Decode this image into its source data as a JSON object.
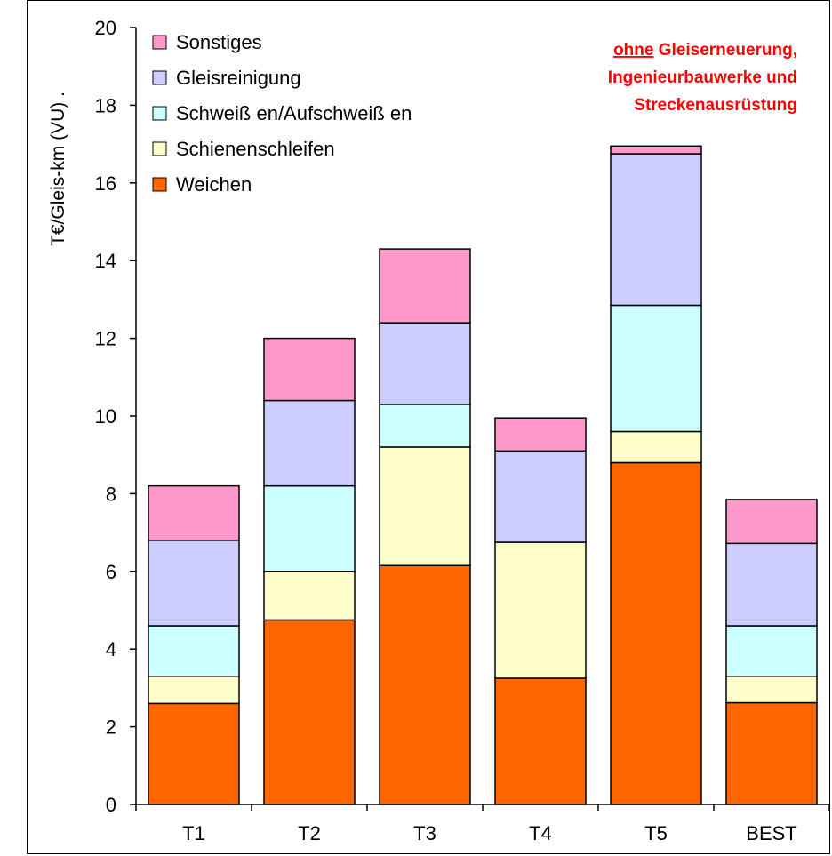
{
  "chart_data": {
    "type": "bar",
    "stacked": true,
    "ylabel": "T€/Gleis-km (VU) .",
    "xlabel": "",
    "ylim": [
      0,
      20
    ],
    "yticks": [
      0,
      2,
      4,
      6,
      8,
      10,
      12,
      14,
      16,
      18,
      20
    ],
    "categories": [
      "T1",
      "T2",
      "T3",
      "T4",
      "T5",
      "BEST"
    ],
    "series": [
      {
        "name": "Weichen",
        "color": "#ff6600",
        "values": [
          2.6,
          4.75,
          6.15,
          3.25,
          8.8,
          2.62
        ]
      },
      {
        "name": "Schienenschleifen",
        "color": "#ffffcc",
        "values": [
          0.7,
          1.25,
          3.05,
          3.5,
          0.8,
          0.68
        ]
      },
      {
        "name": "Schweißen/Aufschweißen",
        "color": "#ccffff",
        "values": [
          1.3,
          2.2,
          1.1,
          0.0,
          3.25,
          1.3
        ]
      },
      {
        "name": "Gleisreinigung",
        "color": "#ccccff",
        "values": [
          2.2,
          2.2,
          2.1,
          2.35,
          3.9,
          2.12
        ]
      },
      {
        "name": "Sonstiges",
        "color": "#ff99cc",
        "values": [
          1.4,
          1.6,
          1.9,
          0.85,
          0.2,
          1.13
        ]
      }
    ],
    "legend": {
      "placement": "top-left",
      "order": [
        "Sonstiges",
        "Gleisreinigung",
        "Schweißen/Aufschweißen",
        "Schienenschleifen",
        "Weichen"
      ],
      "labels": [
        "Sonstiges",
        "Gleisreinigung",
        "Schweiß en/Aufschweiß en",
        "Schienenschleifen",
        "Weichen"
      ]
    },
    "annotation": {
      "line1_underlined": "ohne",
      "line1_rest": " Gleiserneuerung,",
      "line2": "Ingenieurbauwerke und",
      "line3": "Streckenausrüstung",
      "color": "#ff0000"
    },
    "grid": false
  }
}
